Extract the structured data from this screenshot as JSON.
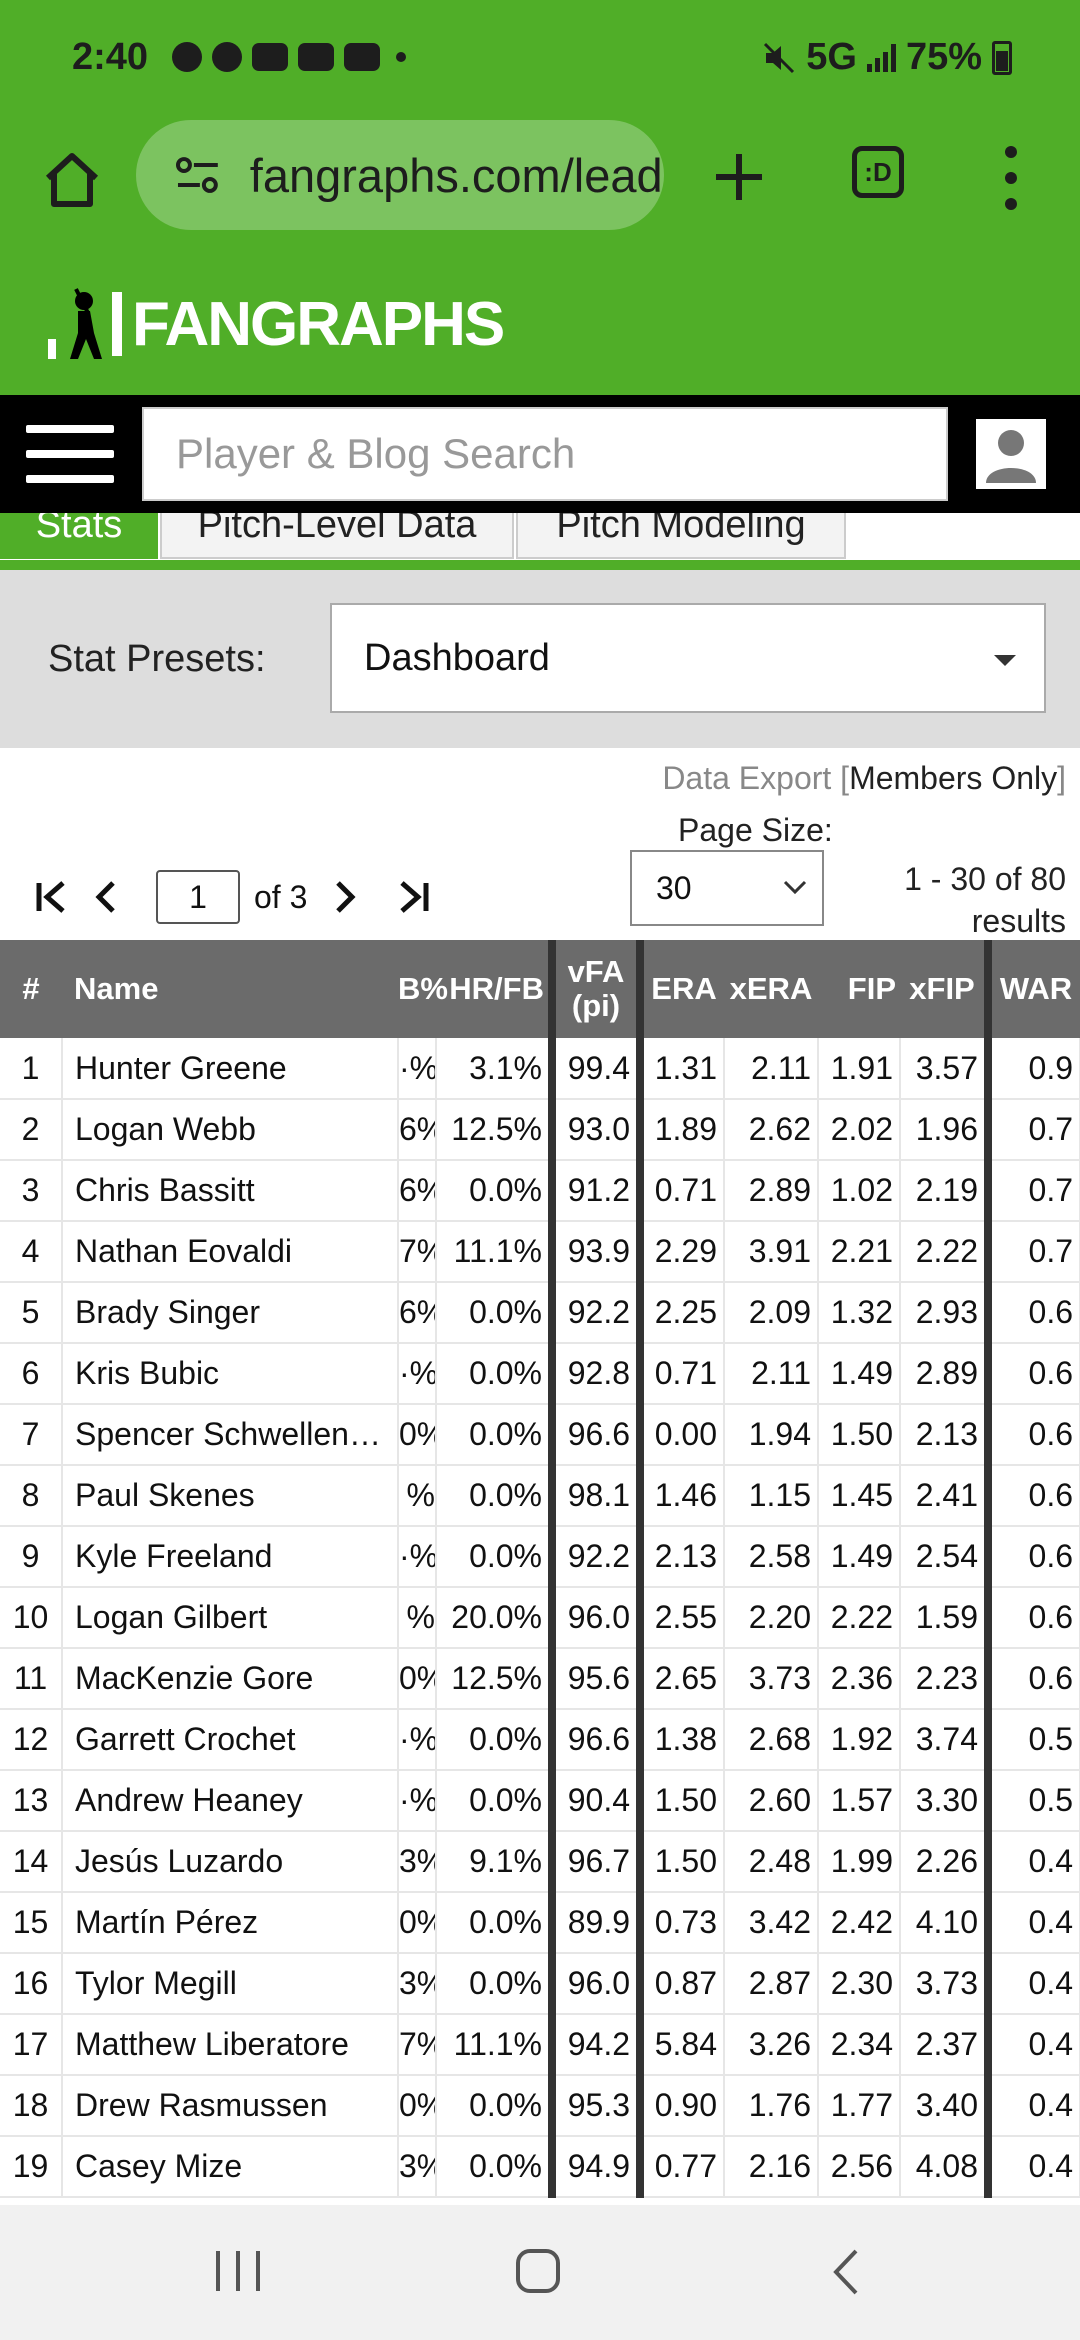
{
  "status": {
    "time": "2:40",
    "network": "5G",
    "battery": "75%"
  },
  "browser": {
    "url": "fangraphs.com/leaderboards/major-league",
    "tab_icon_label": ":D"
  },
  "site": {
    "logo_text": "FANGRAPHS",
    "search_placeholder": "Player & Blog Search",
    "brand_color": "#50ae28"
  },
  "tabs": [
    {
      "label": "Stats"
    },
    {
      "label": "Pitch-Level Data"
    },
    {
      "label": "Pitch Modeling"
    }
  ],
  "presets": {
    "label": "Stat Presets:",
    "selected": "Dashboard"
  },
  "controls": {
    "export_text": "Data Export [",
    "export_members": "Members Only",
    "export_close": "]",
    "page_size_label": "Page Size:",
    "page_size_value": "30",
    "current_page": "1",
    "of_pages": "of 3",
    "results_text": "1 - 30 of 80 results"
  },
  "table": {
    "headers": {
      "rank": "#",
      "name": "Name",
      "clipped": "B%",
      "hrfb": "HR/FB",
      "vfa": "vFA (pi)",
      "era": "ERA",
      "xera": "xERA",
      "fip": "FIP",
      "xfip": "xFIP",
      "war": "WAR"
    },
    "rows": [
      {
        "rank": "1",
        "name": "Hunter Greene",
        "c": "·%",
        "hrfb": "3.1%",
        "vfa": "99.4",
        "era": "1.31",
        "xera": "2.11",
        "fip": "1.91",
        "xfip": "3.57",
        "war": "0.9"
      },
      {
        "rank": "2",
        "name": "Logan Webb",
        "c": "6%",
        "hrfb": "12.5%",
        "vfa": "93.0",
        "era": "1.89",
        "xera": "2.62",
        "fip": "2.02",
        "xfip": "1.96",
        "war": "0.7"
      },
      {
        "rank": "3",
        "name": "Chris Bassitt",
        "c": "6%",
        "hrfb": "0.0%",
        "vfa": "91.2",
        "era": "0.71",
        "xera": "2.89",
        "fip": "1.02",
        "xfip": "2.19",
        "war": "0.7"
      },
      {
        "rank": "4",
        "name": "Nathan Eovaldi",
        "c": "7%",
        "hrfb": "11.1%",
        "vfa": "93.9",
        "era": "2.29",
        "xera": "3.91",
        "fip": "2.21",
        "xfip": "2.22",
        "war": "0.7"
      },
      {
        "rank": "5",
        "name": "Brady Singer",
        "c": "6%",
        "hrfb": "0.0%",
        "vfa": "92.2",
        "era": "2.25",
        "xera": "2.09",
        "fip": "1.32",
        "xfip": "2.93",
        "war": "0.6"
      },
      {
        "rank": "6",
        "name": "Kris Bubic",
        "c": "·%",
        "hrfb": "0.0%",
        "vfa": "92.8",
        "era": "0.71",
        "xera": "2.11",
        "fip": "1.49",
        "xfip": "2.89",
        "war": "0.6"
      },
      {
        "rank": "7",
        "name": "Spencer Schwellenbach",
        "c": "0%",
        "hrfb": "0.0%",
        "vfa": "96.6",
        "era": "0.00",
        "xera": "1.94",
        "fip": "1.50",
        "xfip": "2.13",
        "war": "0.6"
      },
      {
        "rank": "8",
        "name": "Paul Skenes",
        "c": "%",
        "hrfb": "0.0%",
        "vfa": "98.1",
        "era": "1.46",
        "xera": "1.15",
        "fip": "1.45",
        "xfip": "2.41",
        "war": "0.6"
      },
      {
        "rank": "9",
        "name": "Kyle Freeland",
        "c": "·%",
        "hrfb": "0.0%",
        "vfa": "92.2",
        "era": "2.13",
        "xera": "2.58",
        "fip": "1.49",
        "xfip": "2.54",
        "war": "0.6"
      },
      {
        "rank": "10",
        "name": "Logan Gilbert",
        "c": "%",
        "hrfb": "20.0%",
        "vfa": "96.0",
        "era": "2.55",
        "xera": "2.20",
        "fip": "2.22",
        "xfip": "1.59",
        "war": "0.6"
      },
      {
        "rank": "11",
        "name": "MacKenzie Gore",
        "c": "0%",
        "hrfb": "12.5%",
        "vfa": "95.6",
        "era": "2.65",
        "xera": "3.73",
        "fip": "2.36",
        "xfip": "2.23",
        "war": "0.6"
      },
      {
        "rank": "12",
        "name": "Garrett Crochet",
        "c": "·%",
        "hrfb": "0.0%",
        "vfa": "96.6",
        "era": "1.38",
        "xera": "2.68",
        "fip": "1.92",
        "xfip": "3.74",
        "war": "0.5"
      },
      {
        "rank": "13",
        "name": "Andrew Heaney",
        "c": "·%",
        "hrfb": "0.0%",
        "vfa": "90.4",
        "era": "1.50",
        "xera": "2.60",
        "fip": "1.57",
        "xfip": "3.30",
        "war": "0.5"
      },
      {
        "rank": "14",
        "name": "Jesús Luzardo",
        "c": "3%",
        "hrfb": "9.1%",
        "vfa": "96.7",
        "era": "1.50",
        "xera": "2.48",
        "fip": "1.99",
        "xfip": "2.26",
        "war": "0.4"
      },
      {
        "rank": "15",
        "name": "Martín Pérez",
        "c": "0%",
        "hrfb": "0.0%",
        "vfa": "89.9",
        "era": "0.73",
        "xera": "3.42",
        "fip": "2.42",
        "xfip": "4.10",
        "war": "0.4"
      },
      {
        "rank": "16",
        "name": "Tylor Megill",
        "c": "3%",
        "hrfb": "0.0%",
        "vfa": "96.0",
        "era": "0.87",
        "xera": "2.87",
        "fip": "2.30",
        "xfip": "3.73",
        "war": "0.4"
      },
      {
        "rank": "17",
        "name": "Matthew Liberatore",
        "c": "7%",
        "hrfb": "11.1%",
        "vfa": "94.2",
        "era": "5.84",
        "xera": "3.26",
        "fip": "2.34",
        "xfip": "2.37",
        "war": "0.4"
      },
      {
        "rank": "18",
        "name": "Drew Rasmussen",
        "c": "0%",
        "hrfb": "0.0%",
        "vfa": "95.3",
        "era": "0.90",
        "xera": "1.76",
        "fip": "1.77",
        "xfip": "3.40",
        "war": "0.4"
      },
      {
        "rank": "19",
        "name": "Casey Mize",
        "c": "3%",
        "hrfb": "0.0%",
        "vfa": "94.9",
        "era": "0.77",
        "xera": "2.16",
        "fip": "2.56",
        "xfip": "4.08",
        "war": "0.4"
      }
    ]
  }
}
